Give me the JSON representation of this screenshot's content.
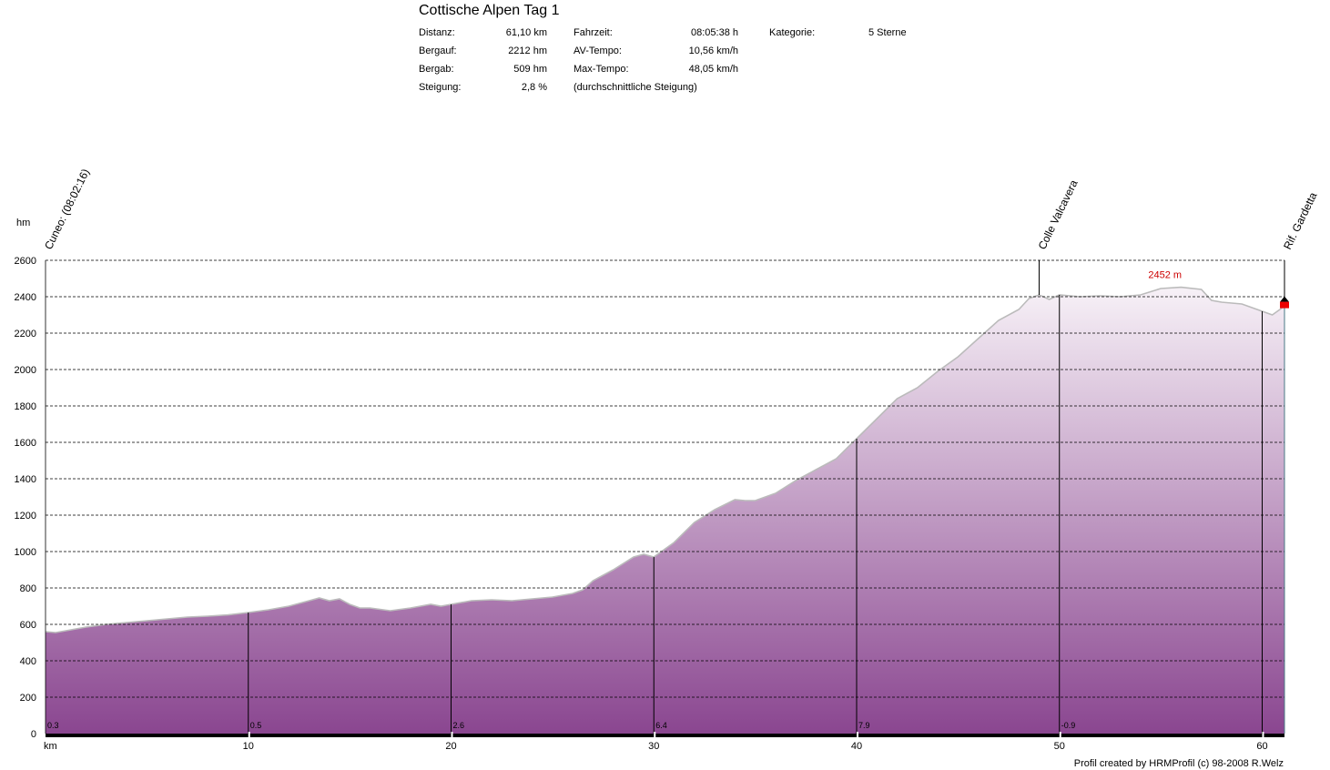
{
  "header": {
    "title": "Cottische Alpen Tag 1",
    "stats": [
      {
        "label": "Distanz:",
        "value": "61,10 km"
      },
      {
        "label": "Bergauf:",
        "value": "2212 hm"
      },
      {
        "label": "Bergab:",
        "value": "509 hm"
      },
      {
        "label": "Steigung:",
        "value": "2,8 %"
      }
    ],
    "stats2": [
      {
        "label": "Fahrzeit:",
        "value": "08:05:38 h"
      },
      {
        "label": "AV-Tempo:",
        "value": "10,56 km/h"
      },
      {
        "label": "Max-Tempo:",
        "value": "48,05 km/h"
      },
      {
        "label": "",
        "value": "(durchschnittliche Steigung)"
      }
    ],
    "kategorie_label": "Kategorie:",
    "kategorie_value": "5 Sterne"
  },
  "credit": "Profil created by HRMProfil (c) 98-2008 R.Welz",
  "colors": {
    "fill_top": "#f7f1f7",
    "fill_bottom": "#8a4690",
    "outline": "#bbbbbb",
    "max_label": "#cc0000"
  },
  "chart_data": {
    "type": "area",
    "ylabel": "hm",
    "xlabel": "km",
    "xlim": [
      0,
      61.1
    ],
    "ylim": [
      0,
      2600
    ],
    "yticks": [
      0,
      200,
      400,
      600,
      800,
      1000,
      1200,
      1400,
      1600,
      1800,
      2000,
      2200,
      2400,
      2600
    ],
    "xticks": [
      10,
      20,
      30,
      40,
      50,
      60
    ],
    "grid": true,
    "series": [
      {
        "x": [
          0,
          0.5,
          1,
          2,
          3,
          4,
          5,
          6,
          7,
          8,
          9,
          10,
          11,
          12,
          13,
          13.5,
          14,
          14.5,
          15,
          15.5,
          16,
          17,
          18,
          19,
          19.5,
          20,
          21,
          22,
          23,
          24,
          25,
          26,
          26.5,
          27,
          28,
          29,
          29.5,
          30,
          31,
          32,
          33,
          34,
          34.5,
          35,
          36,
          37,
          38,
          39,
          40,
          41,
          42,
          43,
          44,
          45,
          46,
          47,
          48,
          48.5,
          49,
          49.5,
          50,
          51,
          52,
          53,
          54,
          55,
          56,
          57,
          57.5,
          58,
          59,
          60,
          60.5,
          61,
          61.1
        ],
        "y": [
          560,
          555,
          565,
          585,
          600,
          610,
          620,
          630,
          640,
          645,
          652,
          665,
          680,
          700,
          730,
          745,
          730,
          740,
          710,
          690,
          690,
          675,
          690,
          710,
          700,
          710,
          730,
          735,
          730,
          740,
          750,
          770,
          790,
          840,
          900,
          970,
          985,
          970,
          1050,
          1160,
          1230,
          1285,
          1280,
          1280,
          1320,
          1390,
          1450,
          1510,
          1620,
          1730,
          1840,
          1900,
          1990,
          2070,
          2170,
          2270,
          2330,
          2390,
          2410,
          2385,
          2410,
          2400,
          2405,
          2400,
          2410,
          2445,
          2452,
          2440,
          2380,
          2370,
          2360,
          2320,
          2300,
          2340,
          2357
        ]
      }
    ],
    "markers": [
      {
        "km": 0,
        "label": "Cuneo:  (08:02:16)"
      },
      {
        "km": 49,
        "label": "Colle Valcavera"
      },
      {
        "km": 61.1,
        "label": "Rif. Gardetta"
      }
    ],
    "annotations": [
      {
        "km": 56,
        "alt": 2452,
        "text": "2452 m"
      }
    ],
    "segment_grades": [
      {
        "km": 0,
        "grade": "0.3"
      },
      {
        "km": 10,
        "grade": "0.5"
      },
      {
        "km": 20,
        "grade": "2.6"
      },
      {
        "km": 30,
        "grade": "6.4"
      },
      {
        "km": 40,
        "grade": "7.9"
      },
      {
        "km": 50,
        "grade": "-0.9"
      }
    ]
  }
}
